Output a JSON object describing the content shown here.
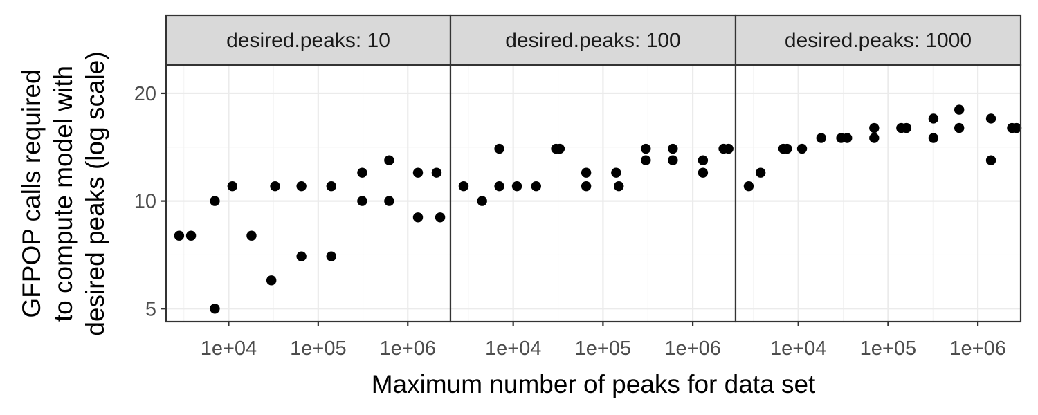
{
  "chart_data": {
    "type": "scatter",
    "facet_label_prefix": "desired.peaks: ",
    "xlabel": "Maximum number of peaks for data set",
    "ylabel_lines": [
      "GFPOP calls required",
      "to compute model with",
      "desired peaks (log scale)"
    ],
    "x_scale": "log10",
    "y_scale": "log",
    "xlim": [
      2000,
      3000000
    ],
    "ylim": [
      4.6,
      24
    ],
    "x_ticks": [
      10000,
      100000,
      1000000
    ],
    "x_tick_labels": [
      "1e+04",
      "1e+05",
      "1e+06"
    ],
    "y_ticks": [
      5,
      10,
      20
    ],
    "y_tick_labels": [
      "5",
      "10",
      "20"
    ],
    "grid": true,
    "facets": [
      {
        "desired_peaks": "10",
        "points": [
          {
            "x": 2800,
            "y": 8
          },
          {
            "x": 3800,
            "y": 8
          },
          {
            "x": 7000,
            "y": 10
          },
          {
            "x": 7000,
            "y": 5
          },
          {
            "x": 11000,
            "y": 11
          },
          {
            "x": 18000,
            "y": 8
          },
          {
            "x": 30000,
            "y": 6
          },
          {
            "x": 33000,
            "y": 11
          },
          {
            "x": 65000,
            "y": 11
          },
          {
            "x": 65000,
            "y": 7
          },
          {
            "x": 140000,
            "y": 11
          },
          {
            "x": 140000,
            "y": 7
          },
          {
            "x": 310000,
            "y": 12
          },
          {
            "x": 310000,
            "y": 10
          },
          {
            "x": 620000,
            "y": 13
          },
          {
            "x": 620000,
            "y": 10
          },
          {
            "x": 1300000,
            "y": 12
          },
          {
            "x": 1300000,
            "y": 9
          },
          {
            "x": 2100000,
            "y": 12
          },
          {
            "x": 2300000,
            "y": 9
          }
        ]
      },
      {
        "desired_peaks": "100",
        "points": [
          {
            "x": 2800,
            "y": 11
          },
          {
            "x": 4500,
            "y": 10
          },
          {
            "x": 7000,
            "y": 14
          },
          {
            "x": 7000,
            "y": 11
          },
          {
            "x": 11000,
            "y": 11
          },
          {
            "x": 18000,
            "y": 11
          },
          {
            "x": 30000,
            "y": 14
          },
          {
            "x": 33000,
            "y": 14
          },
          {
            "x": 65000,
            "y": 12
          },
          {
            "x": 65000,
            "y": 11
          },
          {
            "x": 140000,
            "y": 12
          },
          {
            "x": 150000,
            "y": 11
          },
          {
            "x": 300000,
            "y": 14
          },
          {
            "x": 300000,
            "y": 13
          },
          {
            "x": 600000,
            "y": 14
          },
          {
            "x": 600000,
            "y": 13
          },
          {
            "x": 1300000,
            "y": 13
          },
          {
            "x": 1300000,
            "y": 12
          },
          {
            "x": 2200000,
            "y": 14
          },
          {
            "x": 2500000,
            "y": 14
          }
        ]
      },
      {
        "desired_peaks": "1000",
        "points": [
          {
            "x": 2800,
            "y": 11
          },
          {
            "x": 3800,
            "y": 12
          },
          {
            "x": 6800,
            "y": 14
          },
          {
            "x": 7500,
            "y": 14
          },
          {
            "x": 11000,
            "y": 14
          },
          {
            "x": 18000,
            "y": 15
          },
          {
            "x": 30000,
            "y": 15
          },
          {
            "x": 35000,
            "y": 15
          },
          {
            "x": 70000,
            "y": 16
          },
          {
            "x": 70000,
            "y": 15
          },
          {
            "x": 140000,
            "y": 16
          },
          {
            "x": 160000,
            "y": 16
          },
          {
            "x": 320000,
            "y": 17
          },
          {
            "x": 320000,
            "y": 15
          },
          {
            "x": 620000,
            "y": 18
          },
          {
            "x": 620000,
            "y": 16
          },
          {
            "x": 1400000,
            "y": 17
          },
          {
            "x": 1400000,
            "y": 13
          },
          {
            "x": 2400000,
            "y": 16
          },
          {
            "x": 2700000,
            "y": 16
          }
        ]
      }
    ]
  }
}
